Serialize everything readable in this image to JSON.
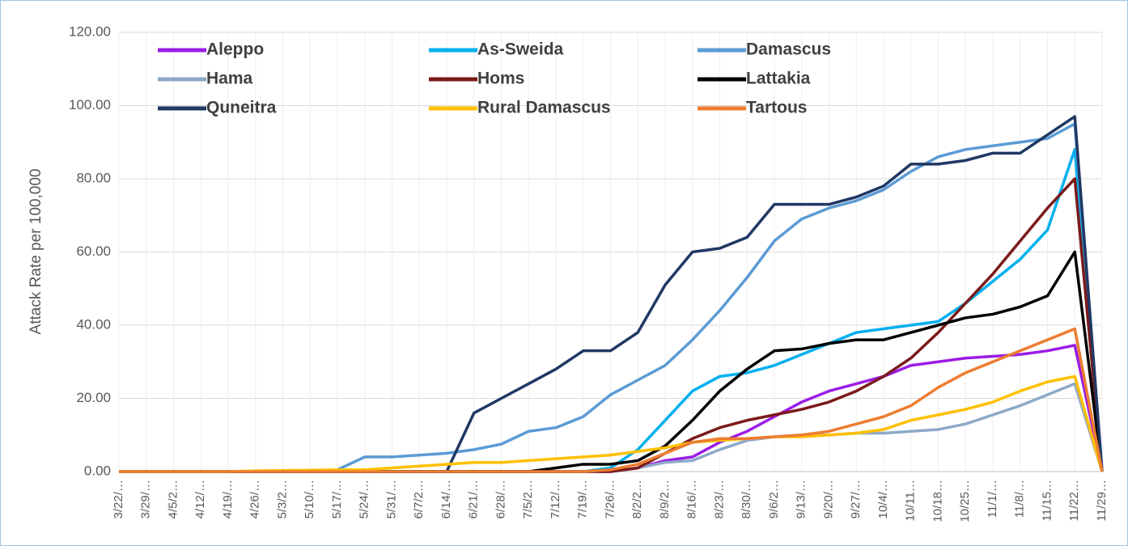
{
  "chart_data": {
    "type": "line",
    "y_label": "Attack Rate per 100,000",
    "categories": [
      "3/22/…",
      "3/29/…",
      "4/5/2…",
      "4/12/…",
      "4/19/…",
      "4/26/…",
      "5/3/2…",
      "5/10/…",
      "5/17/…",
      "5/24/…",
      "5/31/…",
      "6/7/2…",
      "6/14/…",
      "6/21/…",
      "6/28/…",
      "7/5/2…",
      "7/12/…",
      "7/19/…",
      "7/26/…",
      "8/2/2…",
      "8/9/2…",
      "8/16/…",
      "8/23/…",
      "8/30/…",
      "9/6/2…",
      "9/13/…",
      "9/20/…",
      "9/27/…",
      "10/4/…",
      "10/11…",
      "10/18…",
      "10/25…",
      "11/1/…",
      "11/8/…",
      "11/15…",
      "11/22…",
      "11/29…"
    ],
    "series": [
      {
        "name": "Aleppo",
        "color": "#9b1de6",
        "values": [
          0,
          0,
          0,
          0,
          0,
          0,
          0,
          0,
          0,
          0,
          0,
          0,
          0,
          0,
          0,
          0,
          0,
          0,
          0,
          1,
          3,
          4,
          8,
          11,
          15,
          19,
          22,
          24,
          26,
          29,
          30,
          31,
          31.5,
          32,
          33,
          34.5,
          0
        ]
      },
      {
        "name": "As-Sweida",
        "color": "#00b0f0",
        "values": [
          0,
          0,
          0,
          0,
          0,
          0,
          0,
          0,
          0,
          0,
          0,
          0,
          0,
          0,
          0,
          0,
          0,
          0,
          1,
          6,
          14,
          22,
          26,
          27,
          29,
          32,
          35,
          38,
          39,
          40,
          41,
          46,
          52,
          58,
          66,
          88,
          0
        ]
      },
      {
        "name": "Damascus",
        "color": "#5b9bd5",
        "values": [
          0,
          0,
          0,
          0,
          0,
          0,
          0,
          0,
          0.5,
          4,
          4,
          4.5,
          5,
          6,
          7.5,
          11,
          12,
          15,
          21,
          25,
          29,
          36,
          44,
          53,
          63,
          69,
          72,
          74,
          77,
          82,
          86,
          88,
          89,
          90,
          91,
          95,
          0
        ]
      },
      {
        "name": "Hama",
        "color": "#8ea9c8",
        "values": [
          0,
          0,
          0,
          0,
          0,
          0,
          0,
          0,
          0,
          0,
          0,
          0,
          0,
          0,
          0,
          0,
          0,
          0,
          0,
          1,
          2.5,
          3,
          6,
          8.5,
          9.5,
          10,
          10,
          10.5,
          10.5,
          11,
          11.5,
          13,
          15.5,
          18,
          21,
          24,
          0
        ]
      },
      {
        "name": "Homs",
        "color": "#7b1a1a",
        "values": [
          0,
          0,
          0,
          0,
          0,
          0,
          0,
          0,
          0,
          0,
          0,
          0,
          0,
          0,
          0,
          0,
          0,
          0,
          0,
          1,
          5,
          9,
          12,
          14,
          15.5,
          17,
          19,
          22,
          26,
          31,
          38,
          46,
          54,
          63,
          72,
          80,
          0
        ]
      },
      {
        "name": "Lattakia",
        "color": "#000000",
        "values": [
          0,
          0,
          0,
          0,
          0,
          0,
          0,
          0,
          0,
          0,
          0,
          0,
          0,
          0,
          0,
          0,
          1,
          2,
          2,
          3,
          7,
          14,
          22,
          28,
          33,
          33.5,
          35,
          36,
          36,
          38,
          40,
          42,
          43,
          45,
          48,
          60,
          0
        ]
      },
      {
        "name": "Quneitra",
        "color": "#203864",
        "values": [
          0,
          0,
          0,
          0,
          0,
          0,
          0,
          0,
          0,
          0,
          0,
          0,
          0,
          16,
          20,
          24,
          28,
          33,
          33,
          38,
          51,
          60,
          61,
          64,
          73,
          73,
          73,
          75,
          78,
          84,
          84,
          85,
          87,
          87,
          92,
          97,
          0
        ]
      },
      {
        "name": "Rural Damascus",
        "color": "#ffc000",
        "values": [
          0,
          0,
          0,
          0,
          0,
          0.2,
          0.3,
          0.4,
          0.5,
          0.5,
          1,
          1.5,
          2,
          2.5,
          2.5,
          3,
          3.5,
          4,
          4.5,
          5.5,
          6.5,
          8,
          8.5,
          9,
          9.5,
          9.5,
          10,
          10.5,
          11.5,
          14,
          15.5,
          17,
          19,
          22,
          24.5,
          26,
          0
        ]
      },
      {
        "name": "Tartous",
        "color": "#ed7d31",
        "values": [
          0,
          0,
          0,
          0,
          0,
          0,
          0,
          0,
          0,
          0,
          0,
          0,
          0,
          0,
          0,
          0,
          0,
          0,
          0.5,
          2,
          5,
          8,
          9,
          9,
          9.5,
          10,
          11,
          13,
          15,
          18,
          23,
          27,
          30,
          33,
          36,
          39,
          0
        ]
      }
    ],
    "ylim": [
      0,
      120
    ],
    "yticks": [
      {
        "value": 0,
        "label": "0.00"
      },
      {
        "value": 20,
        "label": "20.00"
      },
      {
        "value": 40,
        "label": "40.00"
      },
      {
        "value": 60,
        "label": "60.00"
      },
      {
        "value": 80,
        "label": "80.00"
      },
      {
        "value": 100,
        "label": "100.00"
      },
      {
        "value": 120,
        "label": "120.00"
      }
    ],
    "grid": true
  }
}
